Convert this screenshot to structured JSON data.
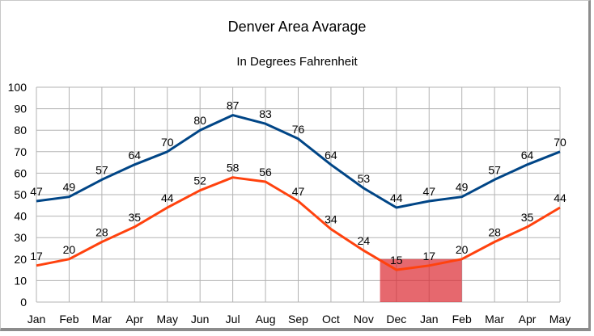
{
  "chart_data": {
    "type": "line",
    "title": "Denver Area Avarage",
    "subtitle": "In Degrees Fahrenheit",
    "categories": [
      "Jan",
      "Feb",
      "Mar",
      "Apr",
      "May",
      "Jun",
      "Jul",
      "Aug",
      "Sep",
      "Oct",
      "Nov",
      "Dec",
      "Jan",
      "Feb",
      "Mar",
      "Apr",
      "May"
    ],
    "series": [
      {
        "values": [
          47,
          49,
          57,
          64,
          70,
          80,
          87,
          83,
          76,
          64,
          53,
          44,
          47,
          49,
          57,
          64,
          70
        ],
        "color": "#004586"
      },
      {
        "values": [
          17,
          20,
          28,
          35,
          44,
          52,
          58,
          56,
          47,
          34,
          24,
          15,
          17,
          20,
          28,
          35,
          44
        ],
        "color": "#ff420e"
      }
    ],
    "ylim": [
      0,
      100
    ],
    "yticks": [
      0,
      10,
      20,
      30,
      40,
      50,
      60,
      70,
      80,
      90,
      100
    ],
    "grid": true,
    "legend": "none",
    "highlight": {
      "from_category_index": 10.5,
      "to_category_index": 13,
      "y_from": 0,
      "y_to": 20,
      "color": "#dc2830"
    }
  }
}
